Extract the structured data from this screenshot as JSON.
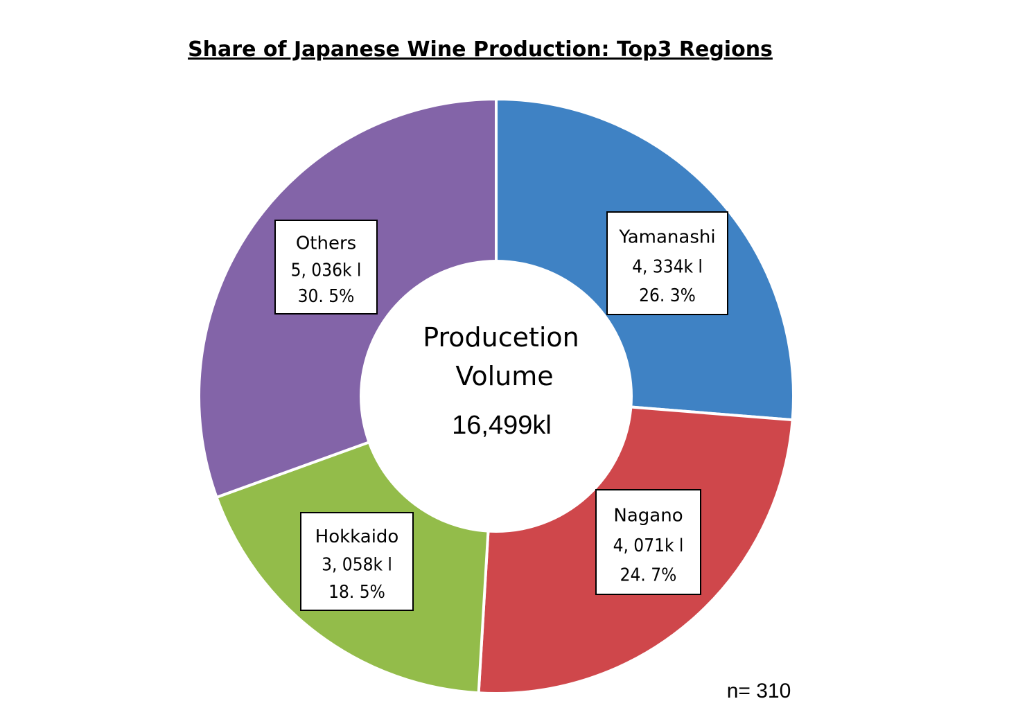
{
  "chart_data": {
    "type": "pie",
    "title": "Share of Japanese Wine Production: Top3 Regions",
    "categories": [
      "Yamanashi",
      "Nagano",
      "Hokkaido",
      "Others"
    ],
    "values": [
      4334,
      4071,
      3058,
      5036
    ],
    "value_labels": [
      "4, 334k l",
      "4, 071k l",
      "3, 058k l",
      "5, 036k l"
    ],
    "percent_labels": [
      "26. 3%",
      "24. 7%",
      "18. 5%",
      "30. 5%"
    ],
    "colors": [
      "#3f82c4",
      "#cf474b",
      "#93bc4a",
      "#8364a8"
    ],
    "donut_hole": true,
    "center_label": {
      "line1": "Producetion",
      "line2": "Volume",
      "total": "16,499kl"
    },
    "note": "n= 310",
    "legend": "none",
    "label_style": "boxed labels on slices"
  }
}
